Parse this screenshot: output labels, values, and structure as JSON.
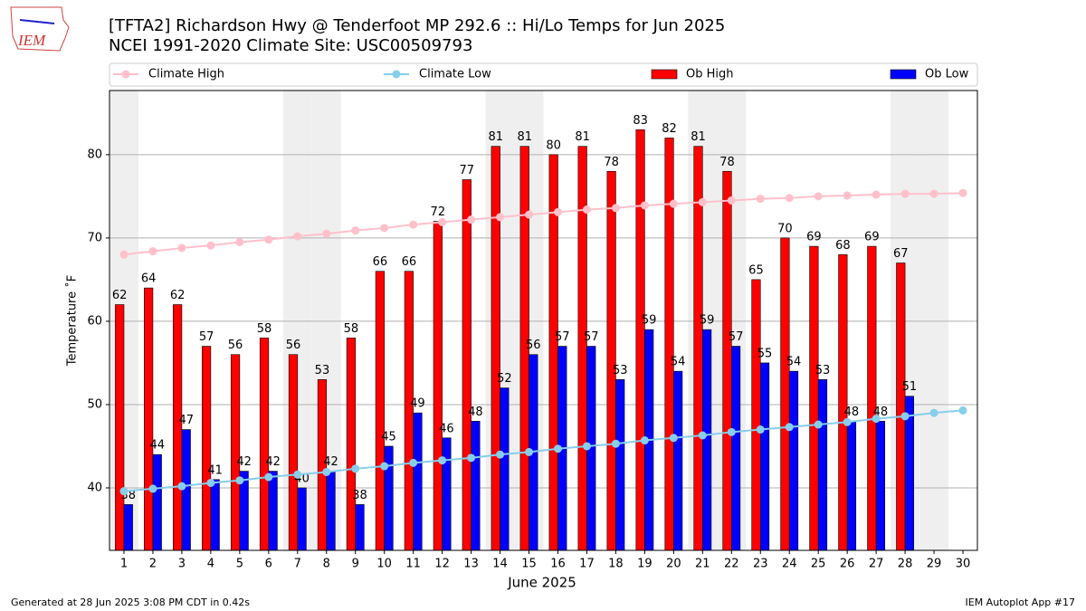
{
  "header": {
    "logo_text": "IEM"
  },
  "footer": {
    "left": "Generated at 28 Jun 2025 3:08 PM CDT in 0.42s",
    "right": "IEM Autoplot App #17"
  },
  "chart_data": {
    "type": "bar",
    "title": "[TFTA2] Richardson Hwy @ Tenderfoot MP 292.6 :: Hi/Lo Temps for Jun 2025",
    "subtitle": "NCEI 1991-2020 Climate Site: USC00509793",
    "xlabel": "June 2025",
    "ylabel": "Temperature ˚F",
    "x": [
      1,
      2,
      3,
      4,
      5,
      6,
      7,
      8,
      9,
      10,
      11,
      12,
      13,
      14,
      15,
      16,
      17,
      18,
      19,
      20,
      21,
      22,
      23,
      24,
      25,
      26,
      27,
      28,
      29,
      30
    ],
    "xlim": [
      0.5,
      30.5
    ],
    "xticks": [
      1,
      2,
      3,
      4,
      5,
      6,
      7,
      8,
      9,
      10,
      11,
      12,
      13,
      14,
      15,
      16,
      17,
      18,
      19,
      20,
      21,
      22,
      23,
      24,
      25,
      26,
      27,
      28,
      29,
      30
    ],
    "ylim": [
      32.5,
      87.7
    ],
    "yticks": [
      40,
      50,
      60,
      70,
      80
    ],
    "grid": true,
    "shaded_x": [
      1,
      7,
      8,
      14,
      15,
      21,
      22,
      28,
      29
    ],
    "shade_color": "#efefef",
    "legend": "top",
    "series": [
      {
        "name": "Climate High",
        "kind": "line",
        "color": "#ffc0cb",
        "values": [
          68.0,
          68.4,
          68.8,
          69.1,
          69.5,
          69.8,
          70.2,
          70.5,
          70.9,
          71.2,
          71.6,
          71.9,
          72.2,
          72.5,
          72.8,
          73.1,
          73.4,
          73.6,
          73.9,
          74.1,
          74.3,
          74.5,
          74.7,
          74.8,
          75.0,
          75.1,
          75.2,
          75.3,
          75.3,
          75.4
        ]
      },
      {
        "name": "Climate Low",
        "kind": "line",
        "color": "#87ceeb",
        "values": [
          39.6,
          39.9,
          40.2,
          40.6,
          40.9,
          41.3,
          41.6,
          41.9,
          42.3,
          42.6,
          43.0,
          43.3,
          43.6,
          44.0,
          44.3,
          44.7,
          45.0,
          45.3,
          45.7,
          46.0,
          46.3,
          46.7,
          47.0,
          47.3,
          47.6,
          47.9,
          48.3,
          48.6,
          49.0,
          49.3
        ]
      },
      {
        "name": "Ob High",
        "kind": "bar",
        "color": "#ff0000",
        "offset": -1,
        "values": [
          62,
          64,
          62,
          57,
          56,
          58,
          56,
          53,
          58,
          66,
          66,
          72,
          77,
          81,
          81,
          80,
          81,
          78,
          83,
          82,
          81,
          78,
          65,
          70,
          69,
          68,
          69,
          67,
          null,
          null
        ]
      },
      {
        "name": "Ob Low",
        "kind": "bar",
        "color": "#0000ff",
        "offset": 1,
        "values": [
          38,
          44,
          47,
          41,
          42,
          42,
          40,
          42,
          38,
          45,
          49,
          46,
          48,
          52,
          56,
          57,
          57,
          53,
          59,
          54,
          59,
          57,
          55,
          54,
          53,
          48,
          48,
          51,
          null,
          null
        ]
      }
    ]
  }
}
